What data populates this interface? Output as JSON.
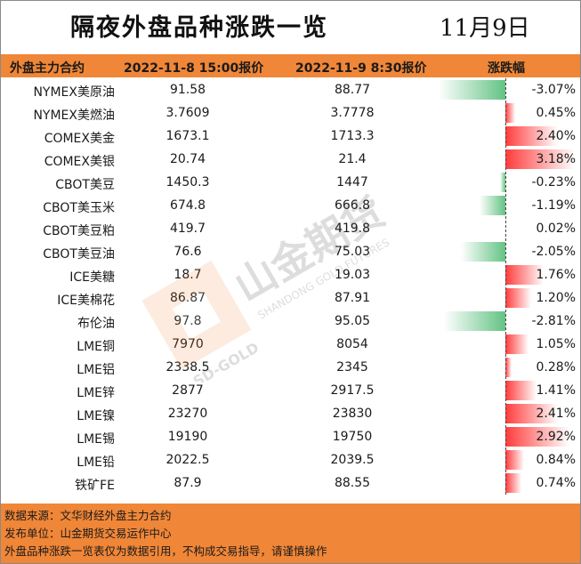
{
  "title": "隔夜外盘品种涨跌一览",
  "date": "11月9日",
  "header": {
    "col_contract": "外盘主力合约",
    "col_prev": "2022-11-8 15:00报价",
    "col_curr": "2022-11-9 8:30报价",
    "col_change": "涨跌幅"
  },
  "rows": [
    {
      "name": "NYMEX美原油",
      "prev": "91.58",
      "curr": "88.77",
      "change": "-3.07%",
      "value": -3.07
    },
    {
      "name": "NYMEX美燃油",
      "prev": "3.7609",
      "curr": "3.7778",
      "change": "0.45%",
      "value": 0.45
    },
    {
      "name": "COMEX美金",
      "prev": "1673.1",
      "curr": "1713.3",
      "change": "2.40%",
      "value": 2.4
    },
    {
      "name": "COMEX美银",
      "prev": "20.74",
      "curr": "21.4",
      "change": "3.18%",
      "value": 3.18
    },
    {
      "name": "CBOT美豆",
      "prev": "1450.3",
      "curr": "1447",
      "change": "-0.23%",
      "value": -0.23
    },
    {
      "name": "CBOT美玉米",
      "prev": "674.8",
      "curr": "666.8",
      "change": "-1.19%",
      "value": -1.19
    },
    {
      "name": "CBOT美豆粕",
      "prev": "419.7",
      "curr": "419.8",
      "change": "0.02%",
      "value": 0.02
    },
    {
      "name": "CBOT美豆油",
      "prev": "76.6",
      "curr": "75.03",
      "change": "-2.05%",
      "value": -2.05
    },
    {
      "name": "ICE美糖",
      "prev": "18.7",
      "curr": "19.03",
      "change": "1.76%",
      "value": 1.76
    },
    {
      "name": "ICE美棉花",
      "prev": "86.87",
      "curr": "87.91",
      "change": "1.20%",
      "value": 1.2
    },
    {
      "name": "布伦油",
      "prev": "97.8",
      "curr": "95.05",
      "change": "-2.81%",
      "value": -2.81
    },
    {
      "name": "LME铜",
      "prev": "7970",
      "curr": "8054",
      "change": "1.05%",
      "value": 1.05
    },
    {
      "name": "LME铝",
      "prev": "2338.5",
      "curr": "2345",
      "change": "0.28%",
      "value": 0.28
    },
    {
      "name": "LME锌",
      "prev": "2877",
      "curr": "2917.5",
      "change": "1.41%",
      "value": 1.41
    },
    {
      "name": "LME镍",
      "prev": "23270",
      "curr": "23830",
      "change": "2.41%",
      "value": 2.41
    },
    {
      "name": "LME锡",
      "prev": "19190",
      "curr": "19750",
      "change": "2.92%",
      "value": 2.92
    },
    {
      "name": "LME铅",
      "prev": "2022.5",
      "curr": "2039.5",
      "change": "0.84%",
      "value": 0.84
    },
    {
      "name": "铁矿FE",
      "prev": "87.9",
      "curr": "88.55",
      "change": "0.74%",
      "value": 0.74
    }
  ],
  "footer": {
    "source": "数据来源：文华财经外盘主力合约",
    "publisher": "发布单位：山金期货交易运作中心",
    "disclaimer": "外盘品种涨跌一览表仅为数据引用，不构成交易指导，请谨慎操作"
  },
  "watermark": {
    "brand": "山金期货",
    "brand_en": "SHANDONG GOLD FUTURES",
    "logo_text": "SD-GOLD"
  },
  "colors": {
    "header_bg": "#f08637",
    "up": "#ff3b3b",
    "down": "#63c384"
  }
}
